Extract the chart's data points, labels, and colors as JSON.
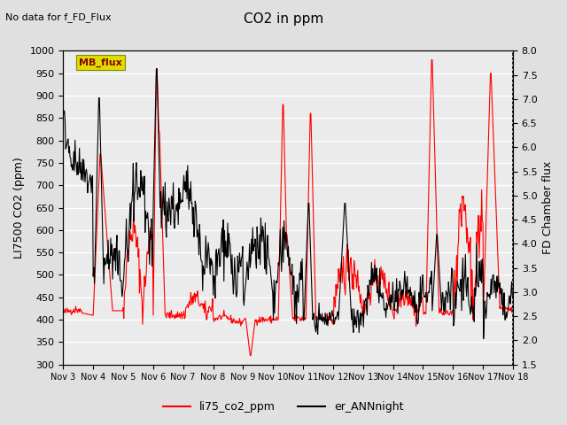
{
  "title": "CO2 in ppm",
  "top_left_text": "No data for f_FD_Flux",
  "ylabel_left": "LI7500 CO2 (ppm)",
  "ylabel_right": "FD Chamber flux",
  "ylim_left": [
    300,
    1000
  ],
  "ylim_right": [
    1.5,
    8.0
  ],
  "yticks_left": [
    300,
    350,
    400,
    450,
    500,
    550,
    600,
    650,
    700,
    750,
    800,
    850,
    900,
    950,
    1000
  ],
  "yticks_right": [
    1.5,
    2.0,
    2.5,
    3.0,
    3.5,
    4.0,
    4.5,
    5.0,
    5.5,
    6.0,
    6.5,
    7.0,
    7.5,
    8.0
  ],
  "xlabel_ticks": [
    "Nov 3",
    "Nov 4",
    "Nov 5",
    "Nov 6",
    "Nov 7",
    "Nov 8",
    "Nov 9",
    "Nov 10",
    "Nov 11",
    "Nov 12",
    "Nov 13",
    "Nov 14",
    "Nov 15",
    "Nov 16",
    "Nov 17",
    "Nov 18"
  ],
  "bg_color": "#e0e0e0",
  "plot_bg_color": "#ebebeb",
  "legend_label_red": "li75_co2_ppm",
  "legend_label_black": "er_ANNnight",
  "mb_flux_box_color": "#dddd00",
  "mb_flux_text": "MB_flux",
  "mb_flux_text_color": "#8b0000"
}
